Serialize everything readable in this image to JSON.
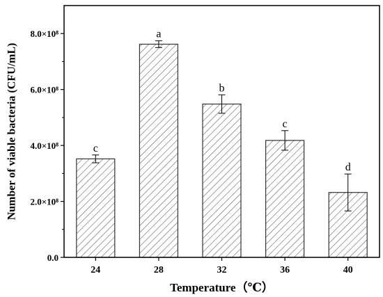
{
  "chart_data": {
    "type": "bar",
    "categories": [
      "24",
      "28",
      "32",
      "36",
      "40"
    ],
    "values": [
      3.52,
      7.62,
      5.48,
      4.18,
      2.32
    ],
    "error": [
      0.14,
      0.12,
      0.33,
      0.35,
      0.66
    ],
    "sig_letters": [
      "c",
      "a",
      "b",
      "c",
      "d"
    ],
    "xlabel": "Temperature（℃）",
    "ylabel": "Number of viable bacteria (CFU/mL)",
    "ylim": [
      0,
      9
    ],
    "yticks": [
      0,
      2,
      4,
      6,
      8
    ],
    "ytick_labels": [
      "0.0",
      "2.0×10⁸",
      "4.0×10⁸",
      "6.0×10⁸",
      "8.0×10⁸"
    ],
    "bar_fill": "diagonal-hatch",
    "colors": {
      "bar_edge": "#333333",
      "hatch": "#555555",
      "axis": "#000000"
    },
    "grid": false
  }
}
